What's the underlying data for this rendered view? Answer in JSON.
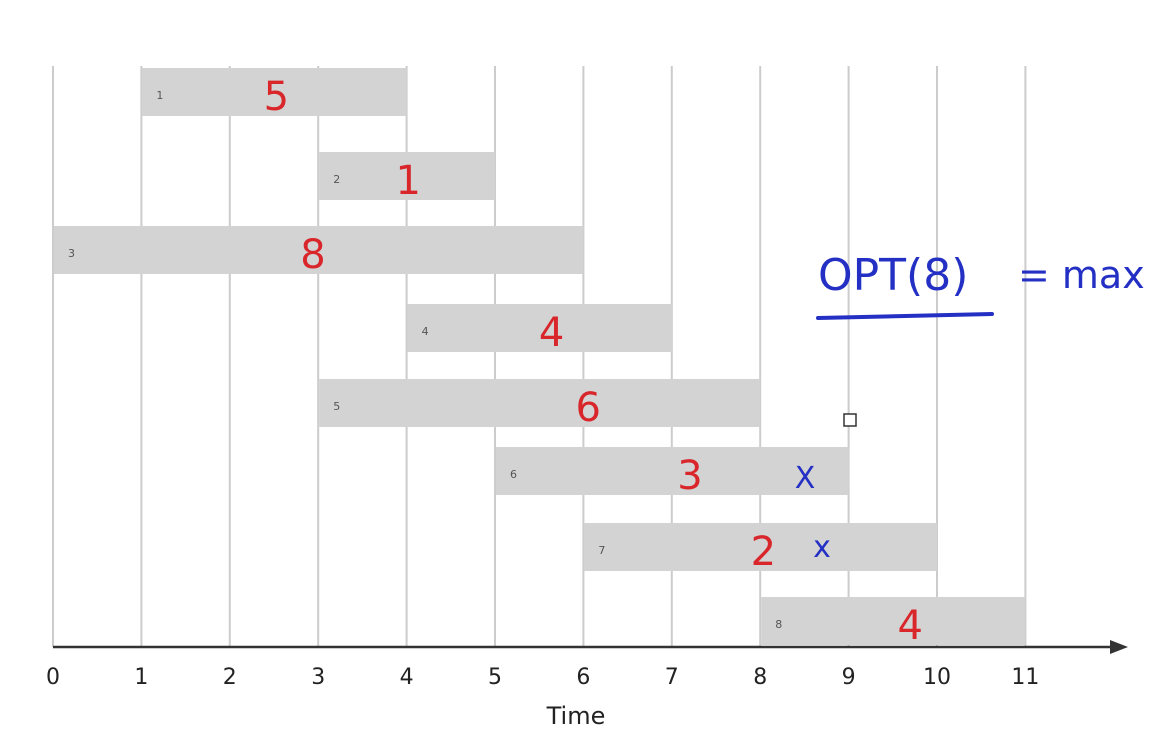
{
  "chart_data": {
    "type": "gantt",
    "xlabel": "Time",
    "x_ticks": [
      0,
      1,
      2,
      3,
      4,
      5,
      6,
      7,
      8,
      9,
      10,
      11
    ],
    "xlim": [
      0,
      11
    ],
    "grid": true,
    "intervals": [
      {
        "id": "1",
        "start": 1,
        "end": 4,
        "weight": "5",
        "mark": ""
      },
      {
        "id": "2",
        "start": 3,
        "end": 5,
        "weight": "1",
        "mark": ""
      },
      {
        "id": "3",
        "start": 0,
        "end": 6,
        "weight": "8",
        "mark": ""
      },
      {
        "id": "4",
        "start": 4,
        "end": 7,
        "weight": "4",
        "mark": ""
      },
      {
        "id": "5",
        "start": 3,
        "end": 8,
        "weight": "6",
        "mark": ""
      },
      {
        "id": "6",
        "start": 5,
        "end": 9,
        "weight": "3",
        "mark": "X"
      },
      {
        "id": "7",
        "start": 6,
        "end": 10,
        "weight": "2",
        "mark": "x"
      },
      {
        "id": "8",
        "start": 8,
        "end": 11,
        "weight": "4",
        "mark": ""
      }
    ]
  },
  "annotation": {
    "opt_label": "OPT(8)",
    "equals_max": "= max"
  },
  "colors": {
    "bar": "#d3d3d3",
    "weight": "#d8262b",
    "note": "#2430c4",
    "grid": "#cccccc",
    "axis": "#333333"
  }
}
